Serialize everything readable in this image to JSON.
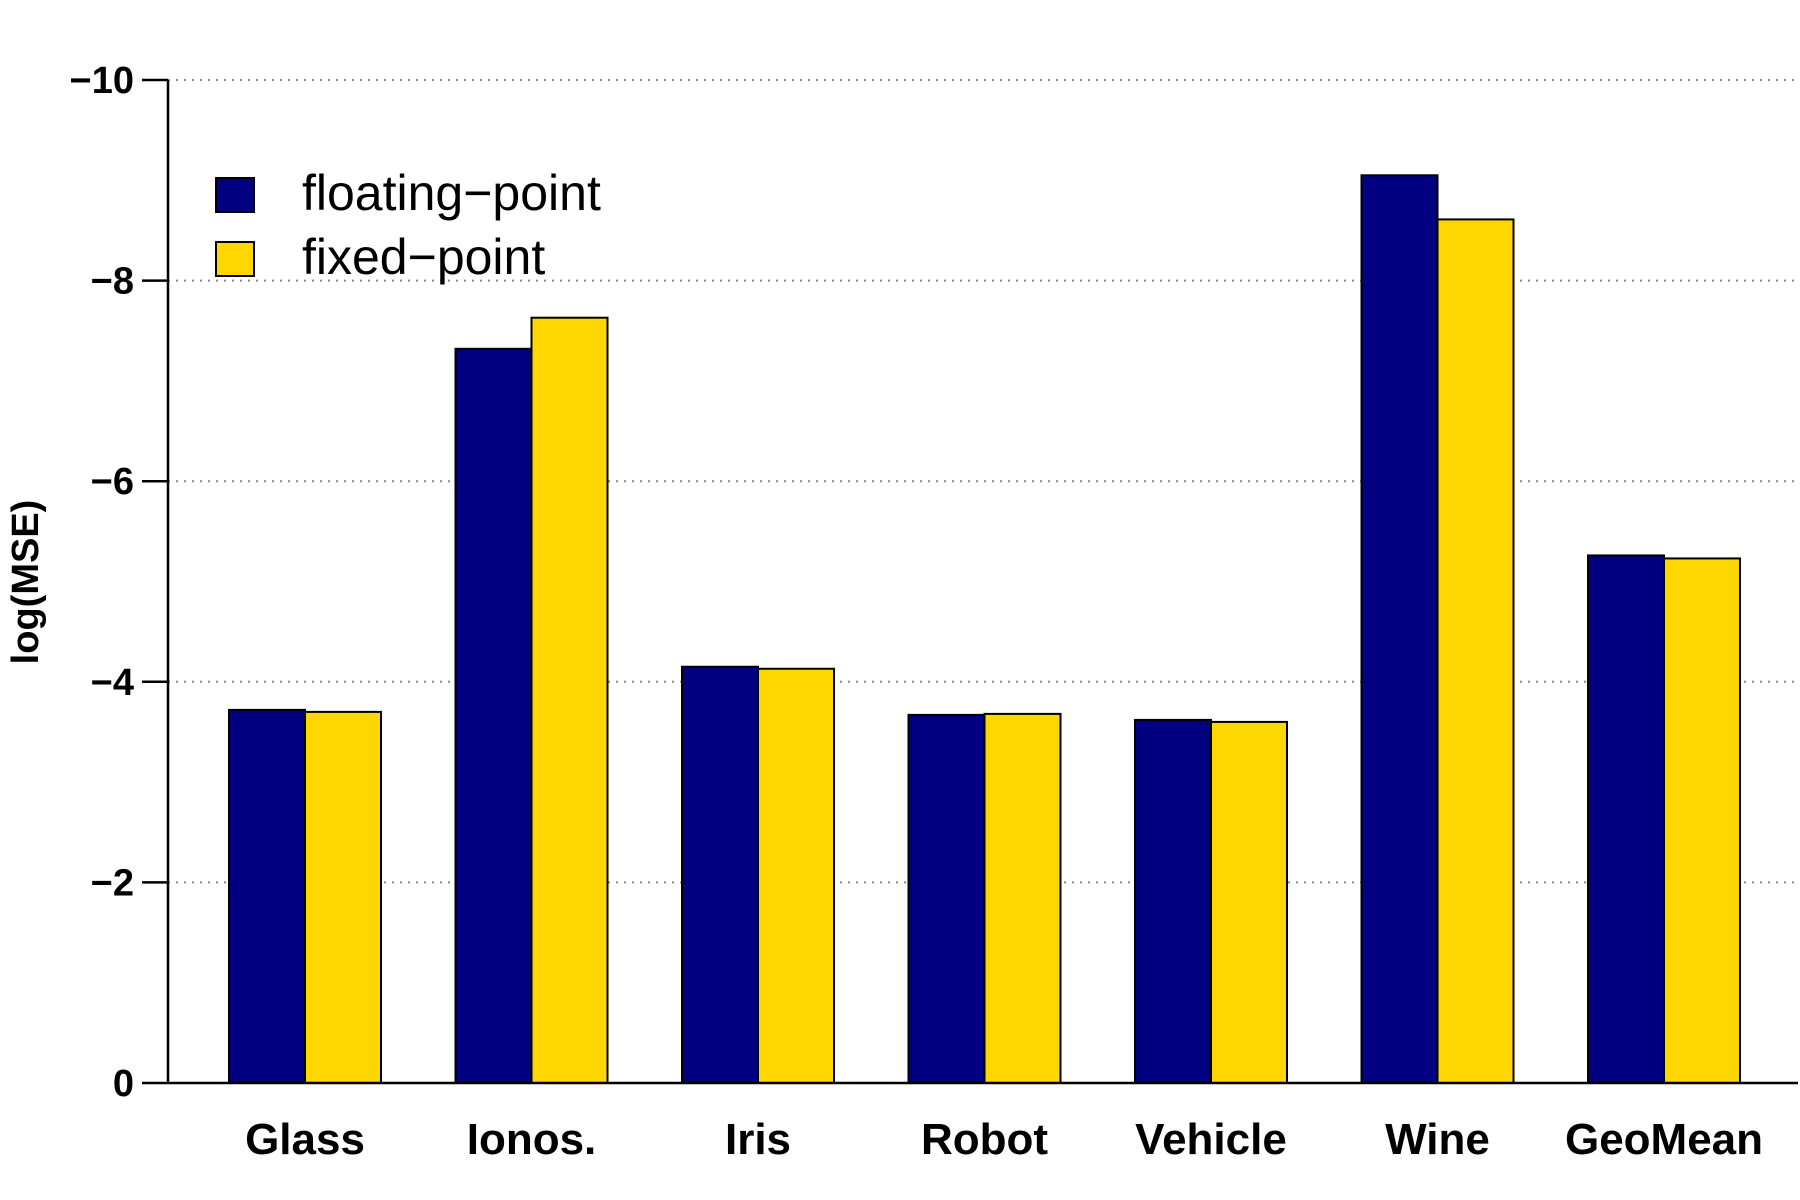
{
  "chart_data": {
    "type": "bar",
    "title": "",
    "xlabel": "",
    "ylabel": "log(MSE)",
    "ylim": [
      0,
      -10
    ],
    "y_axis_inverted": true,
    "yticks": [
      0,
      -2,
      -4,
      -6,
      -8,
      -10
    ],
    "ytick_labels": [
      "0",
      "−2",
      "−4",
      "−6",
      "−8",
      "−10"
    ],
    "grid": "horizontal-dotted",
    "legend_position": "top-left",
    "categories": [
      "Glass",
      "Ionos.",
      "Iris",
      "Robot",
      "Vehicle",
      "Wine",
      "GeoMean"
    ],
    "series": [
      {
        "name": "floating−point",
        "color": "#000080",
        "values": [
          -3.72,
          -7.32,
          -4.15,
          -3.67,
          -3.62,
          -9.05,
          -5.26
        ]
      },
      {
        "name": "fixed−point",
        "color": "#FFD700",
        "values": [
          -3.7,
          -7.63,
          -4.13,
          -3.68,
          -3.6,
          -8.61,
          -5.23
        ]
      }
    ]
  }
}
